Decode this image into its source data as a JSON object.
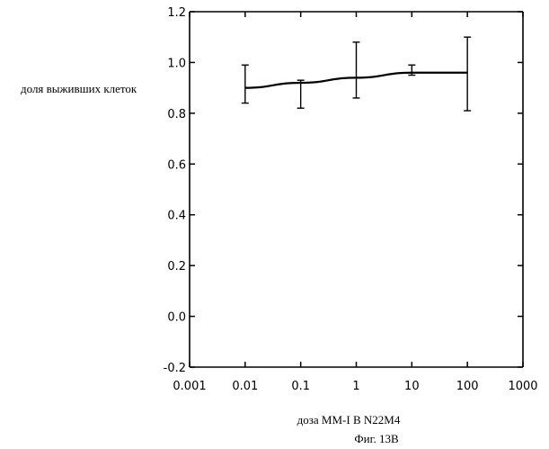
{
  "chart_data": {
    "type": "line",
    "xlabel": "доза MM-I   В  N22M4",
    "ylabel": "доля выживших клеток",
    "caption": "Фиг. 13В",
    "x_scale": "log",
    "xlim": [
      0.001,
      1000
    ],
    "ylim": [
      -0.2,
      1.2
    ],
    "x_ticks": [
      {
        "value": 0.001,
        "label": "0.001"
      },
      {
        "value": 0.01,
        "label": "0.01"
      },
      {
        "value": 0.1,
        "label": "0.1"
      },
      {
        "value": 1,
        "label": "1"
      },
      {
        "value": 10,
        "label": "10"
      },
      {
        "value": 100,
        "label": "100"
      },
      {
        "value": 1000,
        "label": "1000"
      }
    ],
    "y_ticks": [
      {
        "value": -0.2,
        "label": "-0.2"
      },
      {
        "value": 0.0,
        "label": "0.0"
      },
      {
        "value": 0.2,
        "label": "0.2"
      },
      {
        "value": 0.4,
        "label": "0.4"
      },
      {
        "value": 0.6,
        "label": "0.6"
      },
      {
        "value": 0.8,
        "label": "0.8"
      },
      {
        "value": 1.0,
        "label": "1.0"
      },
      {
        "value": 1.2,
        "label": "1.2"
      }
    ],
    "series": [
      {
        "x": [
          0.01,
          0.1,
          1,
          10,
          100
        ],
        "y": [
          0.9,
          0.92,
          0.94,
          0.96,
          0.96
        ],
        "err_low": [
          0.84,
          0.82,
          0.86,
          0.95,
          0.81
        ],
        "err_high": [
          0.99,
          0.93,
          1.08,
          0.99,
          1.1
        ]
      }
    ],
    "grid": false
  }
}
